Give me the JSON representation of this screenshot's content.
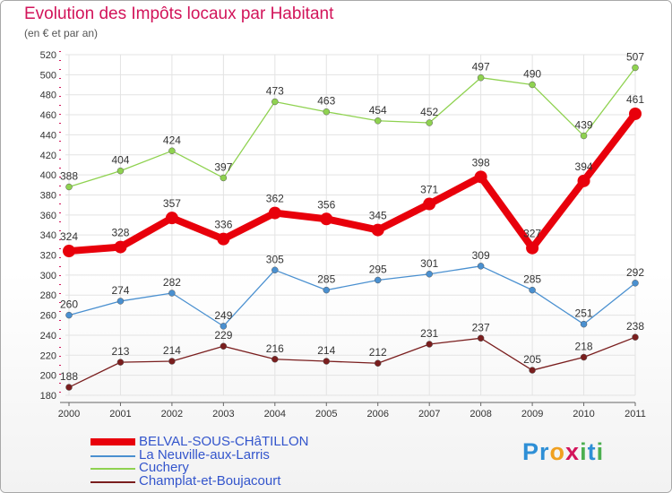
{
  "header": {
    "title": "Evolution des Impôts locaux par Habitant",
    "subtitle": "(en € et par an)"
  },
  "logo": {
    "text": "Proxiti",
    "letters": [
      {
        "ch": "P",
        "color": "#2e8fd6"
      },
      {
        "ch": "r",
        "color": "#2e8fd6"
      },
      {
        "ch": "o",
        "color": "#f0a020"
      },
      {
        "ch": "x",
        "color": "#d2145a"
      },
      {
        "ch": "i",
        "color": "#4caf50"
      },
      {
        "ch": "t",
        "color": "#2e8fd6"
      },
      {
        "ch": "i",
        "color": "#4caf50"
      }
    ]
  },
  "chart_data": {
    "type": "line",
    "title": "Evolution des Impôts locaux par Habitant",
    "subtitle": "(en € et par an)",
    "x": [
      2000,
      2001,
      2002,
      2003,
      2004,
      2005,
      2006,
      2007,
      2008,
      2009,
      2010,
      2011
    ],
    "ylim": [
      180,
      520
    ],
    "yticks": [
      180,
      200,
      220,
      240,
      260,
      280,
      300,
      320,
      340,
      360,
      380,
      400,
      420,
      440,
      460,
      480,
      500,
      520
    ],
    "grid": true,
    "legend_position": "bottom-left",
    "series": [
      {
        "name": "BELVAL-SOUS-CHâTILLON",
        "color": "#e8000b",
        "values": [
          324,
          328,
          357,
          336,
          362,
          356,
          345,
          371,
          398,
          327,
          394,
          461
        ]
      },
      {
        "name": "La Neuville-aux-Larris",
        "color": "#4a90d0",
        "values": [
          260,
          274,
          282,
          249,
          305,
          285,
          295,
          301,
          309,
          285,
          251,
          292
        ]
      },
      {
        "name": "Cuchery",
        "color": "#8fd250",
        "values": [
          388,
          404,
          424,
          397,
          473,
          463,
          454,
          452,
          497,
          490,
          439,
          507
        ]
      },
      {
        "name": "Champlat-et-Boujacourt",
        "color": "#7a1e1e",
        "values": [
          188,
          213,
          214,
          229,
          216,
          214,
          212,
          231,
          237,
          205,
          218,
          238
        ]
      }
    ]
  }
}
